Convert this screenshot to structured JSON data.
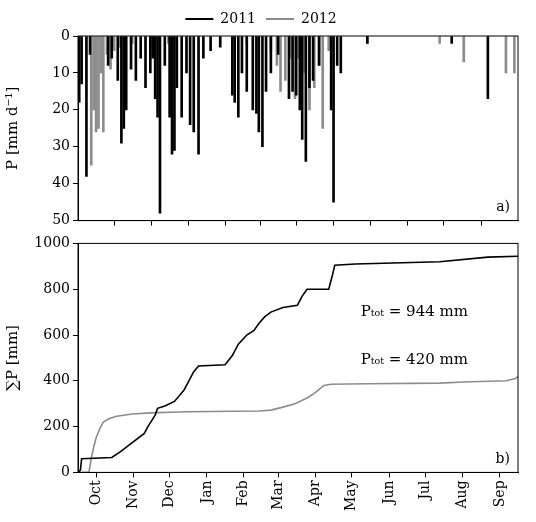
{
  "chart_data": [
    {
      "type": "bar",
      "panel_label": "a)",
      "ylabel": "P [mm d⁻¹]",
      "legend": "top",
      "grid": false,
      "tick_labels": "y",
      "xlim": [
        0,
        365
      ],
      "xticks": [
        15,
        46,
        76,
        107,
        137,
        166,
        197,
        227,
        258,
        288,
        319,
        350
      ],
      "ylim": [
        50,
        0
      ],
      "yticks": [
        0,
        10,
        20,
        30,
        40,
        50
      ],
      "series": [
        {
          "name": "2011",
          "color": "#000000",
          "x": [
            1,
            3,
            7,
            10,
            25,
            28,
            33,
            36,
            38,
            40,
            44,
            48,
            52,
            56,
            60,
            62,
            64,
            66,
            68,
            72,
            76,
            78,
            80,
            82,
            86,
            90,
            93,
            96,
            100,
            104,
            110,
            118,
            128,
            130,
            133,
            136,
            140,
            145,
            148,
            150,
            153,
            156,
            160,
            166,
            175,
            178,
            181,
            184,
            186,
            189,
            192,
            195,
            200,
            210,
            212,
            215,
            218,
            240,
            310,
            340
          ],
          "values": [
            18,
            13,
            38,
            5,
            8,
            6,
            12,
            29,
            25,
            20,
            9,
            12,
            6,
            14,
            10,
            6,
            17,
            22,
            48,
            8,
            22,
            32,
            31,
            14,
            22,
            10,
            24,
            26,
            32,
            6,
            4,
            3,
            16,
            18,
            22,
            10,
            15,
            20,
            21,
            26,
            30,
            15,
            10,
            5,
            17,
            15,
            16,
            20,
            28,
            34,
            14,
            12,
            8,
            20,
            45,
            8,
            10,
            2,
            2,
            17
          ]
        },
        {
          "name": "2012",
          "color": "#8c8c8c",
          "x": [
            11,
            13,
            15,
            17,
            19,
            21,
            24,
            27,
            30,
            35,
            45,
            60,
            75,
            140,
            160,
            165,
            168,
            172,
            176,
            180,
            183,
            188,
            192,
            196,
            200,
            203,
            208,
            240,
            300,
            320,
            355,
            362
          ],
          "values": [
            35,
            20,
            26,
            25,
            10,
            26,
            5,
            9,
            4,
            3,
            2,
            4,
            2,
            2,
            4,
            8,
            15,
            12,
            6,
            17,
            6,
            10,
            20,
            14,
            8,
            25,
            4,
            2,
            2,
            7,
            10,
            10
          ]
        }
      ]
    },
    {
      "type": "line",
      "panel_label": "b)",
      "ylabel": "∑P [mm]",
      "grid": false,
      "xlim": [
        0,
        365
      ],
      "xticks": [
        {
          "value": 15,
          "label": "Oct"
        },
        {
          "value": 46,
          "label": "Nov"
        },
        {
          "value": 76,
          "label": "Dec"
        },
        {
          "value": 107,
          "label": "Jan"
        },
        {
          "value": 137,
          "label": "Feb"
        },
        {
          "value": 166,
          "label": "Mar"
        },
        {
          "value": 197,
          "label": "Apr"
        },
        {
          "value": 227,
          "label": "May"
        },
        {
          "value": 258,
          "label": "Jun"
        },
        {
          "value": 288,
          "label": "Jul"
        },
        {
          "value": 319,
          "label": "Aug"
        },
        {
          "value": 350,
          "label": "Sep"
        }
      ],
      "ylim": [
        0,
        1000
      ],
      "yticks": [
        0,
        200,
        400,
        600,
        800,
        1000
      ],
      "annotations": [
        {
          "text": "Pₜₒₜ = 944 mm",
          "x": 279,
          "y": 700
        },
        {
          "text": "Pₜₒₜ = 420 mm",
          "x": 279,
          "y": 490
        }
      ],
      "series": [
        {
          "name": "2011",
          "color": "#000000",
          "x": [
            0,
            2,
            3,
            28,
            35,
            45,
            55,
            58,
            64,
            66,
            72,
            80,
            88,
            92,
            96,
            100,
            122,
            128,
            133,
            140,
            146,
            150,
            155,
            160,
            170,
            182,
            186,
            190,
            208,
            211,
            213,
            230,
            300,
            340,
            365
          ],
          "values": [
            0,
            10,
            60,
            65,
            90,
            130,
            170,
            200,
            250,
            280,
            290,
            310,
            360,
            400,
            440,
            465,
            470,
            510,
            560,
            600,
            620,
            650,
            680,
            700,
            720,
            730,
            770,
            800,
            800,
            860,
            905,
            910,
            920,
            940,
            944
          ]
        },
        {
          "name": "2012",
          "color": "#8c8c8c",
          "x": [
            0,
            9,
            11,
            13,
            15,
            18,
            21,
            26,
            32,
            45,
            60,
            90,
            150,
            160,
            170,
            180,
            190,
            196,
            204,
            210,
            240,
            300,
            320,
            355,
            363,
            365
          ],
          "values": [
            0,
            0,
            60,
            110,
            150,
            190,
            220,
            235,
            245,
            255,
            260,
            265,
            268,
            272,
            285,
            300,
            325,
            345,
            380,
            385,
            387,
            390,
            395,
            400,
            410,
            420
          ]
        }
      ]
    }
  ]
}
